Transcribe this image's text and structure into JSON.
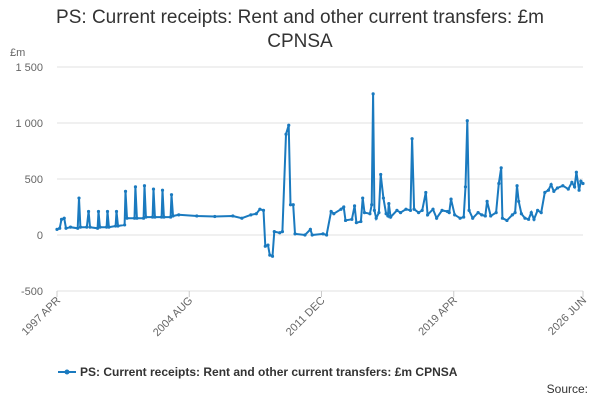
{
  "chart_data": {
    "type": "line",
    "title": "PS: Current receipts: Rent and other current transfers: £m CPNSA",
    "y_unit": "£m",
    "source": "Source:",
    "x": [
      1997.25,
      1997.4,
      1997.5,
      1997.65,
      1997.75,
      1998.0,
      1998.4,
      1998.47,
      1998.55,
      1998.9,
      1999.0,
      1999.08,
      1999.5,
      1999.55,
      1999.63,
      2000.0,
      2000.05,
      2000.13,
      2000.5,
      2000.55,
      2000.63,
      2001.0,
      2001.05,
      2001.13,
      2001.55,
      2001.6,
      2001.68,
      2002.05,
      2002.1,
      2002.18,
      2002.55,
      2002.6,
      2002.68,
      2003.05,
      2003.1,
      2003.18,
      2003.55,
      2003.6,
      2003.68,
      2004.0,
      2005.0,
      2006.0,
      2007.0,
      2007.5,
      2008.0,
      2008.3,
      2008.5,
      2008.7,
      2008.8,
      2008.95,
      2009.05,
      2009.2,
      2009.3,
      2009.6,
      2009.75,
      2009.95,
      2010.1,
      2010.2,
      2010.35,
      2010.45,
      2011.0,
      2011.3,
      2011.4,
      2012.0,
      2012.2,
      2012.45,
      2012.6,
      2013.0,
      2013.15,
      2013.25,
      2013.6,
      2013.75,
      2013.85,
      2014.1,
      2014.2,
      2014.3,
      2014.6,
      2014.7,
      2014.78,
      2014.85,
      2014.95,
      2015.1,
      2015.2,
      2015.35,
      2015.5,
      2015.6,
      2015.65,
      2015.75,
      2016.1,
      2016.3,
      2016.6,
      2016.85,
      2016.94,
      2017.05,
      2017.3,
      2017.5,
      2017.7,
      2017.8,
      2018.1,
      2018.3,
      2018.6,
      2018.9,
      2019.0,
      2019.1,
      2019.3,
      2019.6,
      2019.8,
      2019.9,
      2020.0,
      2020.1,
      2020.3,
      2020.6,
      2020.8,
      2021.0,
      2021.1,
      2021.3,
      2021.6,
      2021.75,
      2021.88,
      2021.95,
      2022.2,
      2022.5,
      2022.65,
      2022.76,
      2022.85,
      2023.0,
      2023.2,
      2023.4,
      2023.55,
      2023.7,
      2023.9,
      2024.1,
      2024.3,
      2024.5,
      2024.65,
      2024.8,
      2025.0,
      2025.3,
      2025.6,
      2025.8,
      2025.95,
      2026.05,
      2026.2,
      2026.3,
      2026.417
    ],
    "series": [
      {
        "name": "PS: Current receipts: Rent and other current transfers: £m CPNSA",
        "color": "#1a7abf",
        "values": [
          50,
          60,
          140,
          150,
          60,
          70,
          60,
          330,
          70,
          70,
          210,
          70,
          60,
          210,
          70,
          70,
          210,
          70,
          80,
          210,
          80,
          90,
          390,
          150,
          150,
          430,
          150,
          150,
          440,
          160,
          160,
          410,
          160,
          160,
          400,
          160,
          160,
          360,
          170,
          180,
          170,
          165,
          170,
          150,
          180,
          190,
          230,
          220,
          -100,
          -90,
          -180,
          -190,
          30,
          20,
          30,
          900,
          980,
          270,
          270,
          10,
          0,
          50,
          0,
          10,
          0,
          210,
          190,
          230,
          250,
          130,
          140,
          260,
          110,
          120,
          330,
          200,
          190,
          270,
          1260,
          220,
          150,
          200,
          540,
          330,
          190,
          170,
          280,
          160,
          220,
          200,
          230,
          220,
          860,
          230,
          200,
          220,
          380,
          180,
          230,
          150,
          220,
          210,
          200,
          320,
          180,
          150,
          160,
          430,
          1020,
          220,
          150,
          200,
          180,
          170,
          300,
          170,
          200,
          460,
          600,
          150,
          130,
          180,
          200,
          440,
          300,
          190,
          150,
          140,
          200,
          140,
          220,
          200,
          380,
          400,
          450,
          390,
          420,
          440,
          410,
          470,
          430,
          560,
          400,
          480,
          460
        ]
      }
    ],
    "xlim": [
      1997.25,
      2026.417
    ],
    "xticks": [
      {
        "value": 1997.25,
        "label": "1997 APR"
      },
      {
        "value": 2004.583,
        "label": "2004 AUG"
      },
      {
        "value": 2011.917,
        "label": "2011 DEC"
      },
      {
        "value": 2019.25,
        "label": "2019 APR"
      },
      {
        "value": 2026.417,
        "label": "2026 JUN"
      }
    ],
    "ylim": [
      -500,
      1500
    ],
    "yticks": [
      -500,
      0,
      500,
      {
        "value": 1000,
        "label": "1 000"
      },
      {
        "value": 1500,
        "label": "1 500"
      }
    ],
    "grid": true
  }
}
